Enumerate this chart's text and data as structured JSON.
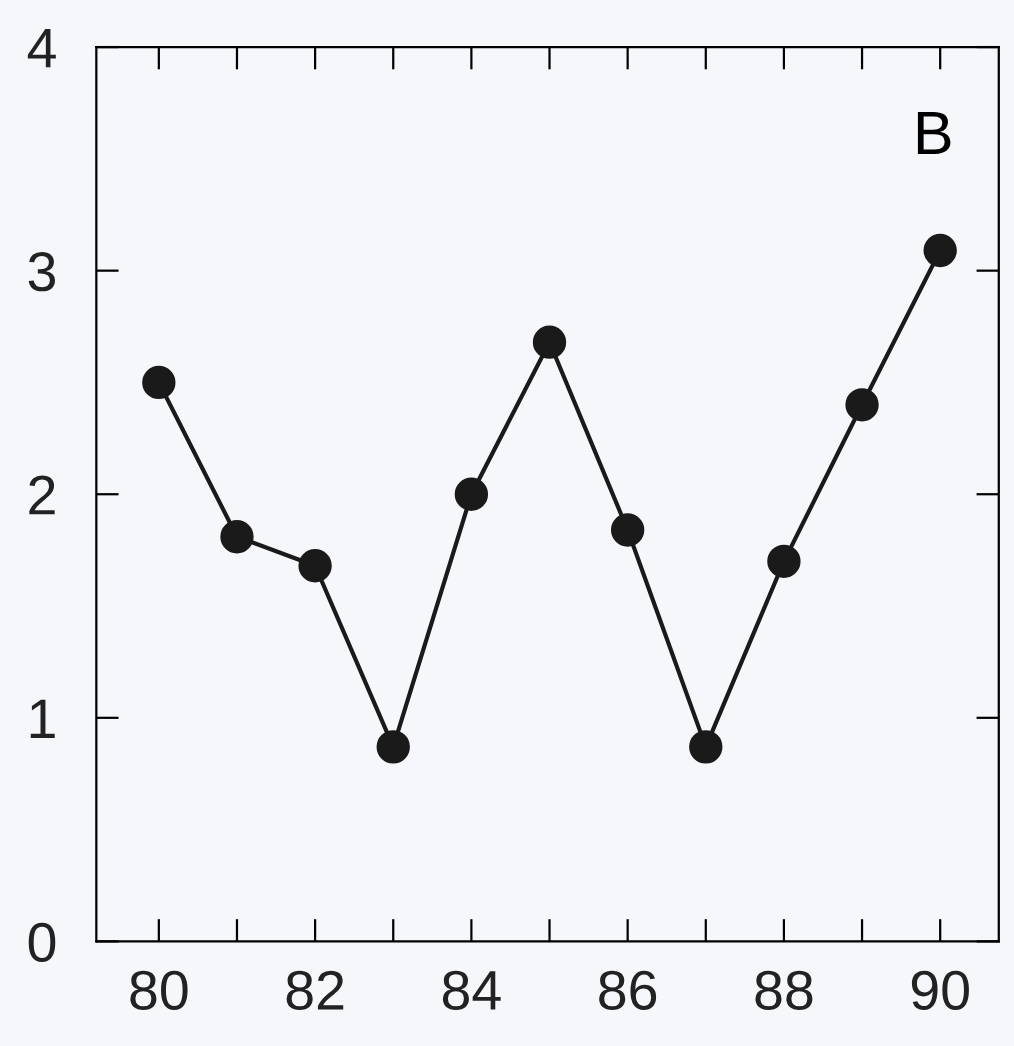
{
  "chart_data": {
    "type": "line",
    "x": [
      80,
      81,
      82,
      83,
      84,
      85,
      86,
      87,
      88,
      89,
      90
    ],
    "series": [
      {
        "color": "#1a1a1a",
        "values": [
          2.5,
          1.81,
          1.68,
          0.87,
          2.0,
          2.68,
          1.84,
          0.87,
          1.7,
          2.4,
          3.09
        ]
      }
    ],
    "xlim": [
      79.2,
      90.75
    ],
    "ylim": [
      0,
      4
    ],
    "xticks": [
      80,
      {
        "value": 81,
        "label": null
      },
      82,
      {
        "value": 83,
        "label": null
      },
      84,
      {
        "value": 85,
        "label": null
      },
      86,
      {
        "value": 87,
        "label": null
      },
      88,
      {
        "value": 89,
        "label": null
      },
      90
    ],
    "yticks": [
      0,
      1,
      2,
      3,
      4
    ],
    "marker": "circle",
    "line_style": "solid",
    "grid": false,
    "legend": false,
    "annotations": [
      "B"
    ]
  }
}
